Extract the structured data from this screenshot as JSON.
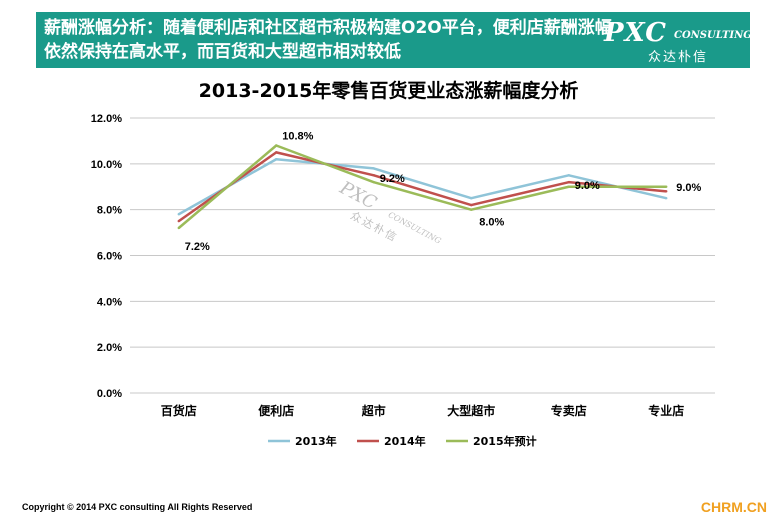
{
  "header": {
    "text": "薪酬涨幅分析：随着便利店和社区超市积极构建O2O平台，便利店薪酬涨幅依然保持在高水平，而百货和大型超市相对较低",
    "logo_main": "PXC",
    "logo_sub": "CONSULTING",
    "logo_cn": "众达朴信",
    "band_color": "#1a9a8a"
  },
  "watermark": {
    "main": "PXC",
    "sub": "CONSULTING",
    "cn": "众达朴信"
  },
  "footer": {
    "copyright": "Copyright © 2014  PXC consulting All Rights Reserved",
    "site_logo": "CHRM.CN"
  },
  "chart_data": {
    "type": "line",
    "title": "2013-2015年零售百货更业态涨薪幅度分析",
    "categories": [
      "百货店",
      "便利店",
      "超市",
      "大型超市",
      "专卖店",
      "专业店"
    ],
    "ylim": [
      0,
      12
    ],
    "yticks": [
      "0.0%",
      "2.0%",
      "4.0%",
      "6.0%",
      "8.0%",
      "10.0%",
      "12.0%"
    ],
    "grid": true,
    "legend_position": "bottom",
    "series": [
      {
        "name": "2013年",
        "color": "#8fc4d8",
        "values": [
          7.8,
          10.2,
          9.8,
          8.5,
          9.5,
          8.5
        ]
      },
      {
        "name": "2014年",
        "color": "#c0504d",
        "values": [
          7.5,
          10.5,
          9.5,
          8.2,
          9.2,
          8.8
        ]
      },
      {
        "name": "2015年预计",
        "color": "#9bbb59",
        "values": [
          7.2,
          10.8,
          9.2,
          8.0,
          9.0,
          9.0
        ]
      }
    ],
    "data_labels": [
      {
        "series": 2,
        "index": 0,
        "text": "7.2%"
      },
      {
        "series": 2,
        "index": 1,
        "text": "10.8%"
      },
      {
        "series": 2,
        "index": 2,
        "text": "9.2%"
      },
      {
        "series": 2,
        "index": 3,
        "text": "8.0%"
      },
      {
        "series": 2,
        "index": 4,
        "text": "9.0%"
      },
      {
        "series": 2,
        "index": 5,
        "text": "9.0%"
      }
    ]
  }
}
